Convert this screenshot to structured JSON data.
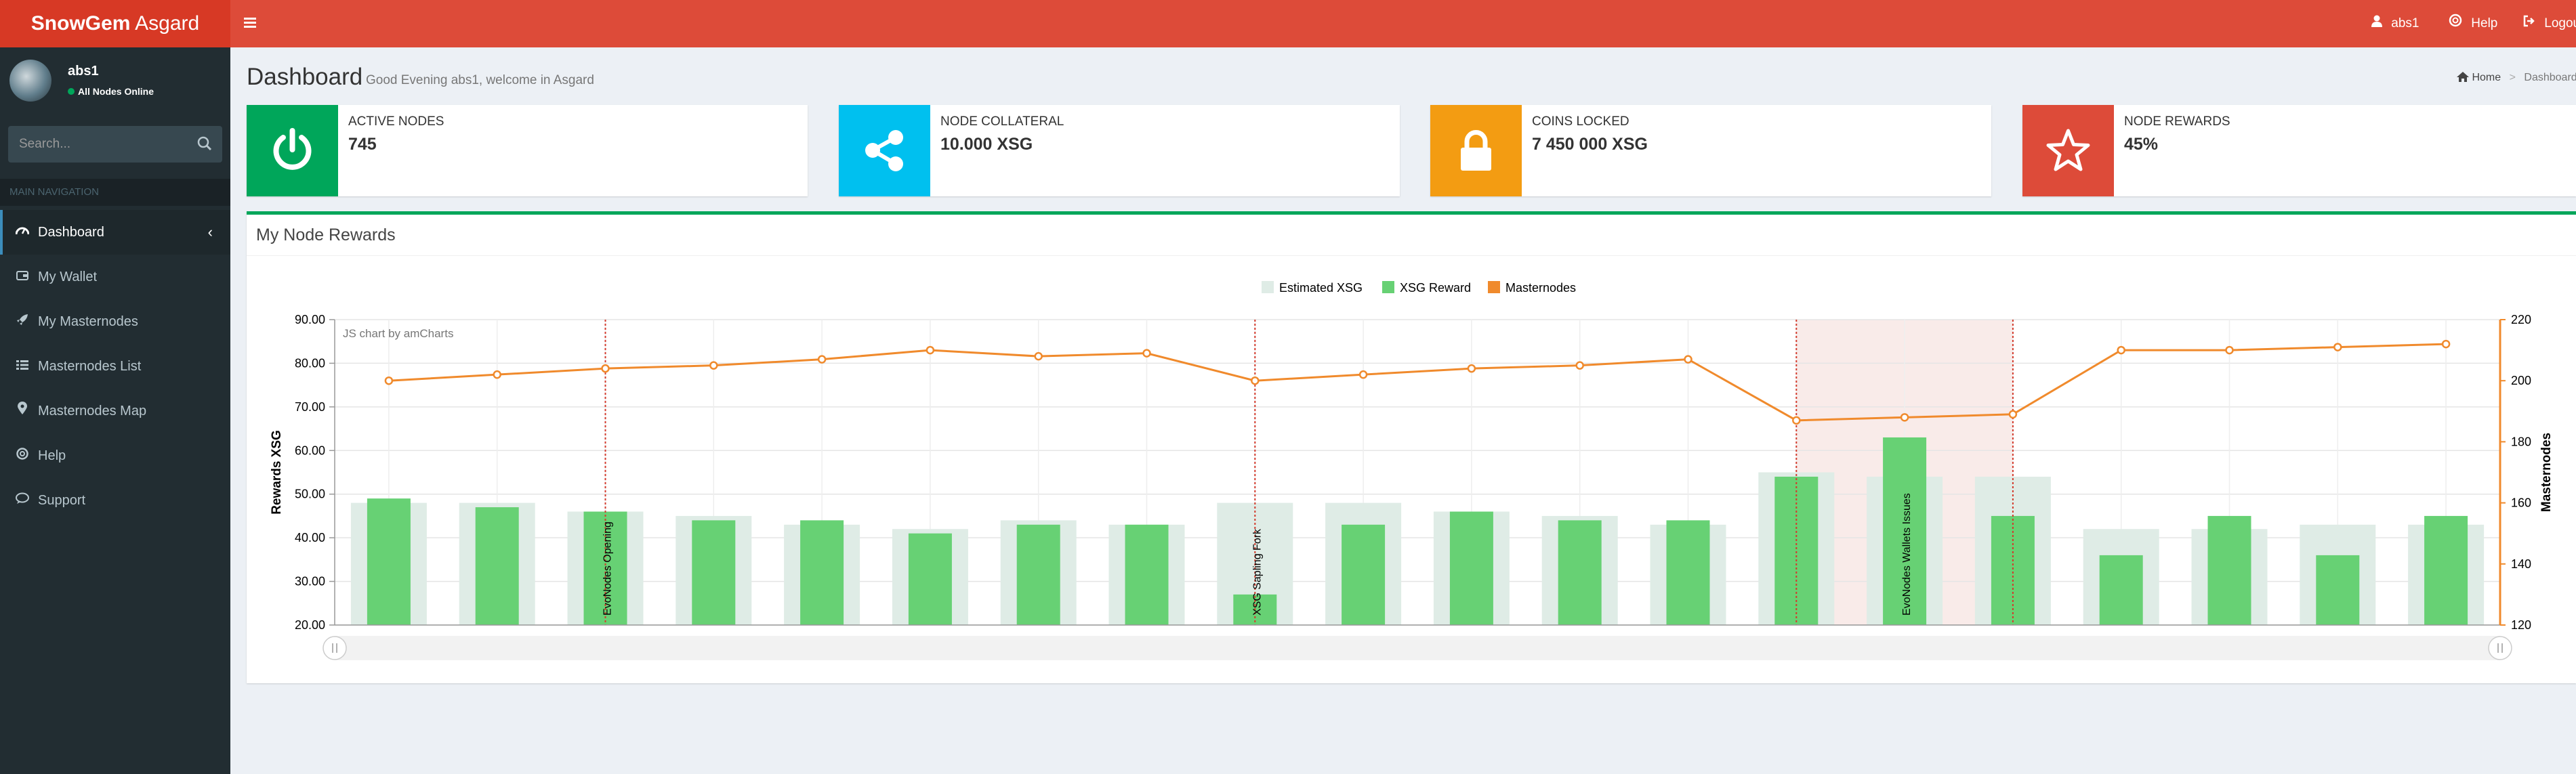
{
  "app": {
    "logo_bold": "SnowGem",
    "logo_rest": " Asgard"
  },
  "topnav": {
    "user": "abs1",
    "help": "Help",
    "logout": "Logout"
  },
  "user": {
    "name": "abs1",
    "status": "All Nodes Online"
  },
  "search": {
    "placeholder": "Search..."
  },
  "sidebar": {
    "header": "MAIN NAVIGATION",
    "items": [
      {
        "label": "Dashboard",
        "icon": "dashboard-icon"
      },
      {
        "label": "My Wallet",
        "icon": "wallet-icon"
      },
      {
        "label": "My Masternodes",
        "icon": "rocket-icon"
      },
      {
        "label": "Masternodes List",
        "icon": "list-icon"
      },
      {
        "label": "Masternodes Map",
        "icon": "map-marker-icon"
      },
      {
        "label": "Help",
        "icon": "life-ring-icon"
      },
      {
        "label": "Support",
        "icon": "chat-icon"
      }
    ]
  },
  "page": {
    "title": "Dashboard",
    "subtitle": "Good Evening abs1, welcome in Asgard"
  },
  "breadcrumb": {
    "home": "Home",
    "current": "Dashboard"
  },
  "info_boxes": [
    {
      "label": "ACTIVE NODES",
      "value": "745",
      "color": "#00a65a",
      "icon": "power-icon"
    },
    {
      "label": "NODE COLLATERAL",
      "value": "10.000 XSG",
      "color": "#00c0ef",
      "icon": "share-icon"
    },
    {
      "label": "COINS LOCKED",
      "value": "7 450 000 XSG",
      "color": "#f39c12",
      "icon": "lock-icon"
    },
    {
      "label": "NODE REWARDS",
      "value": "45%",
      "color": "#dd4b39",
      "icon": "star-icon"
    }
  ],
  "panel": {
    "title": "My Node Rewards"
  },
  "colors": {
    "estimated": "#dfece6",
    "reward": "#67d174",
    "masternodes": "#f08a2c",
    "accent_green": "#00a65a",
    "header_red": "#dd4b39"
  },
  "chart_data": {
    "type": "bar",
    "credit": "JS chart by amCharts",
    "legend": [
      "Estimated XSG",
      "XSG Reward",
      "Masternodes"
    ],
    "legend_position": "top-center",
    "ylabel": "Rewards XSG",
    "y2label": "Masternodes",
    "ylim": [
      20,
      90
    ],
    "y2lim": [
      120,
      220
    ],
    "yticks": [
      "90.00",
      "80.00",
      "70.00",
      "60.00",
      "50.00",
      "40.00",
      "30.00",
      "20.00"
    ],
    "y2ticks": [
      "220",
      "200",
      "180",
      "160",
      "140",
      "120"
    ],
    "grid": true,
    "series": [
      {
        "name": "Estimated XSG",
        "type": "bar",
        "values": [
          48,
          48,
          46,
          45,
          43,
          42,
          44,
          43,
          48,
          48,
          46,
          45,
          43,
          55,
          54,
          54,
          42,
          42,
          43,
          43
        ]
      },
      {
        "name": "XSG Reward",
        "type": "bar",
        "values": [
          49,
          47,
          46,
          44,
          44,
          41,
          43,
          43,
          27,
          43,
          46,
          44,
          44,
          54,
          63,
          45,
          36,
          45,
          36,
          45
        ]
      },
      {
        "name": "Masternodes",
        "type": "line",
        "axis": "right",
        "values": [
          200,
          202,
          204,
          205,
          207,
          210,
          208,
          209,
          200,
          202,
          204,
          205,
          207,
          187,
          188,
          189,
          210,
          210,
          211,
          212
        ]
      }
    ],
    "guides": [
      {
        "label": "EvoNodes Opening",
        "index": 2
      },
      {
        "label": "XSG Sapling Fork",
        "index": 8
      },
      {
        "label": "EvoNodes Wallets Issues",
        "index": 14,
        "band_from": 13,
        "band_to": 15
      }
    ]
  }
}
